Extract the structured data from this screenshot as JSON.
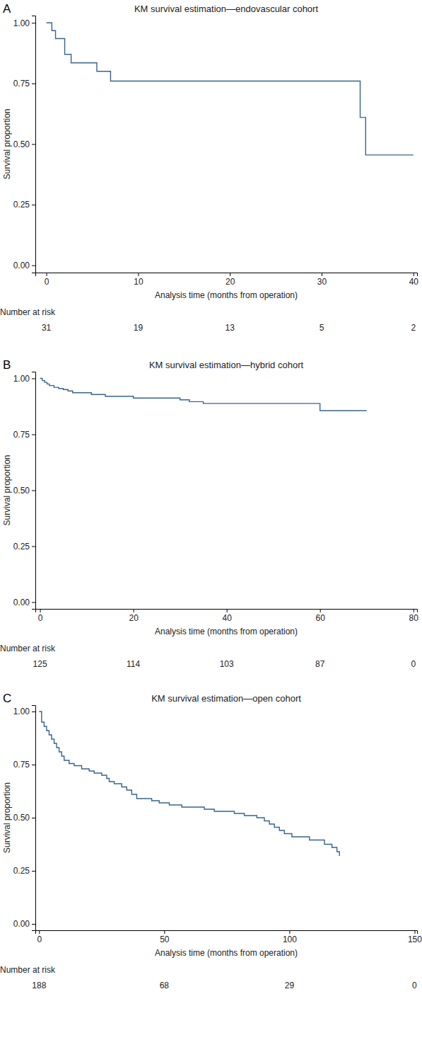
{
  "chart_data": [
    {
      "type": "line",
      "line_style": "step",
      "panel_label": "A",
      "title": "KM survival estimation—endovascular cohort",
      "x_label": "Analysis time (months from operation)",
      "y_label": "Survival proportion",
      "color": "#36648b",
      "x": [
        0,
        0.6,
        1.0,
        2.0,
        2.7,
        5.5,
        7.0,
        34.2,
        34.8,
        40
      ],
      "values": [
        1,
        0.968,
        0.935,
        0.87,
        0.835,
        0.8,
        0.76,
        0.61,
        0.455,
        0.455
      ],
      "xlim": [
        -1.2,
        40.4
      ],
      "xticks": [
        0,
        10,
        20,
        30,
        40
      ],
      "ylim": [
        -0.03,
        1.03
      ],
      "yticks": [
        {
          "value": 0,
          "label": "0.00"
        },
        {
          "value": 0.25,
          "label": "0.25"
        },
        {
          "value": 0.5,
          "label": "0.50"
        },
        {
          "value": 0.75,
          "label": "0.75"
        },
        {
          "value": 1,
          "label": "1.00"
        }
      ],
      "risk_table": {
        "label": "Number at risk",
        "x": [
          0,
          10,
          20,
          30,
          40
        ],
        "values": [
          31,
          19,
          13,
          5,
          2
        ]
      }
    },
    {
      "type": "line",
      "line_style": "step",
      "panel_label": "B",
      "title": "KM survival estimation—hybrid cohort",
      "x_label": "Analysis time (months from operation)",
      "y_label": "Survival proportion",
      "color": "#36648b",
      "x": [
        0,
        0.5,
        1,
        1.5,
        2,
        3,
        4,
        5,
        6,
        7,
        11,
        14,
        20,
        30,
        32,
        35,
        60,
        70
      ],
      "values": [
        1,
        0.99,
        0.982,
        0.975,
        0.968,
        0.96,
        0.955,
        0.95,
        0.944,
        0.936,
        0.928,
        0.92,
        0.912,
        0.904,
        0.896,
        0.888,
        0.856,
        0.856
      ],
      "xlim": [
        -1,
        80.8
      ],
      "xticks": [
        0,
        20,
        40,
        60,
        80
      ],
      "ylim": [
        -0.03,
        1.03
      ],
      "yticks": [
        {
          "value": 0,
          "label": "0.00"
        },
        {
          "value": 0.25,
          "label": "0.25"
        },
        {
          "value": 0.5,
          "label": "0.50"
        },
        {
          "value": 0.75,
          "label": "0.75"
        },
        {
          "value": 1,
          "label": "1.00"
        }
      ],
      "risk_table": {
        "label": "Number at risk",
        "x": [
          0,
          20,
          40,
          60,
          80
        ],
        "values": [
          125,
          114,
          103,
          87,
          0
        ]
      }
    },
    {
      "type": "line",
      "line_style": "step",
      "panel_label": "C",
      "title": "KM survival estimation—open cohort",
      "x_label": "Analysis time (months from operation)",
      "y_label": "Survival proportion",
      "color": "#36648b",
      "x": [
        0,
        1,
        2,
        3,
        4,
        5,
        6,
        7,
        8,
        9,
        10,
        12,
        14,
        17,
        20,
        22,
        25,
        27,
        28,
        30,
        33,
        35,
        37,
        39,
        45,
        48,
        52,
        57,
        66,
        70,
        78,
        82,
        87,
        90,
        92,
        94,
        96,
        98,
        101,
        108,
        114,
        117,
        119,
        120
      ],
      "values": [
        1,
        0.95,
        0.93,
        0.91,
        0.89,
        0.87,
        0.85,
        0.83,
        0.81,
        0.79,
        0.77,
        0.755,
        0.745,
        0.73,
        0.72,
        0.71,
        0.7,
        0.685,
        0.67,
        0.66,
        0.645,
        0.63,
        0.61,
        0.59,
        0.58,
        0.57,
        0.56,
        0.55,
        0.54,
        0.53,
        0.52,
        0.51,
        0.5,
        0.485,
        0.47,
        0.455,
        0.44,
        0.425,
        0.41,
        0.395,
        0.375,
        0.36,
        0.34,
        0.32
      ],
      "xlim": [
        -1.5,
        151
      ],
      "xticks": [
        0,
        50,
        100,
        150
      ],
      "ylim": [
        -0.03,
        1.03
      ],
      "yticks": [
        {
          "value": 0,
          "label": "0.00"
        },
        {
          "value": 0.25,
          "label": "0.25"
        },
        {
          "value": 0.5,
          "label": "0.50"
        },
        {
          "value": 0.75,
          "label": "0.75"
        },
        {
          "value": 1,
          "label": "1.00"
        }
      ],
      "risk_table": {
        "label": "Number at risk",
        "x": [
          0,
          50,
          100,
          150
        ],
        "values": [
          188,
          68,
          29,
          0
        ]
      }
    }
  ]
}
